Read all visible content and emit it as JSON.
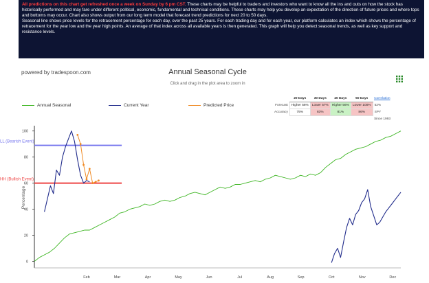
{
  "banner": {
    "highlight": "All predictions on this chart get refreshed once a week on Sunday by 6 pm CST.",
    "text1": "These charts may be helpful to traders and investors who want to know all the ins and outs on how the stock has historically performed and may fare under different political, economic, fundamental and technical conditions. These charts may help you develop an expectation of the direction of future prices and where tops and bottoms may occur. Chart also shows output from our long term model that forecast trend predictions for next 20 to 50 days.",
    "text2": "Seasonal line shows price levels for the retracement percentage for each day, over the past 25 years. For each trading day and for each year, our platform calculates an index which shows the percentage of retracement for the year low and the year high points. An average of that index across all available years is then generated. This graph will help you detect seasonal trends, as well as key support and resistance levels."
  },
  "powered_by": "powered by tradespoon.com",
  "subtitle": "Click and drag in the plot area to zoom in",
  "colors": {
    "seasonal": "#3cb521",
    "current": "#1f2a8a",
    "predicted": "#f08a24",
    "bearish": "#7777ee",
    "bullish": "#ee4444",
    "banner_bg": "#0d1433"
  },
  "forecast": {
    "headers": [
      "20 Days",
      "30 Days",
      "40 Days",
      "50 Days"
    ],
    "rows": [
      {
        "label": "Forecast",
        "cells": [
          {
            "t": "Higher 56%",
            "dir": "none"
          },
          {
            "t": "Lower 57%",
            "dir": "down"
          },
          {
            "t": "Higher 56%",
            "dir": "up"
          },
          {
            "t": "Lower 100%",
            "dir": "down"
          }
        ]
      },
      {
        "label": "Accuracy",
        "cells": [
          {
            "t": "75%",
            "dir": "none"
          },
          {
            "t": "83%",
            "dir": "down"
          },
          {
            "t": "81%",
            "dir": "up"
          },
          {
            "t": "86%",
            "dir": "down"
          }
        ]
      }
    ],
    "extra": [
      "Correlation",
      "52%",
      "SPY",
      "Since 1993"
    ]
  },
  "chart_data": {
    "type": "line",
    "title": "Annual Seasonal Cycle",
    "xlabel": "",
    "ylabel": "Percentage",
    "months": [
      "Feb",
      "Mar",
      "Apr",
      "May",
      "Jun",
      "Jul",
      "Aug",
      "Sep",
      "Oct",
      "Nov",
      "Dec"
    ],
    "yticks": [
      0,
      20,
      40,
      60,
      80,
      100
    ],
    "ylim": [
      -5,
      103
    ],
    "xlim": [
      0,
      365
    ],
    "grid": false,
    "legend_position": "top",
    "series": [
      {
        "name": "Annual Seasonal",
        "x": [
          0,
          5,
          10,
          15,
          20,
          25,
          30,
          35,
          40,
          45,
          50,
          55,
          60,
          65,
          70,
          75,
          80,
          85,
          90,
          95,
          100,
          105,
          110,
          115,
          120,
          125,
          130,
          135,
          140,
          145,
          150,
          155,
          160,
          165,
          170,
          175,
          180,
          185,
          190,
          195,
          200,
          205,
          210,
          215,
          220,
          225,
          230,
          235,
          240,
          245,
          250,
          255,
          260,
          265,
          270,
          275,
          280,
          285,
          290,
          295,
          300,
          305,
          310,
          315,
          320,
          325,
          330,
          335,
          340,
          345,
          350,
          355,
          360,
          365
        ],
        "y": [
          0,
          3,
          5,
          7,
          10,
          14,
          18,
          21,
          22,
          23,
          24,
          24,
          26,
          28,
          30,
          32,
          34,
          37,
          38,
          40,
          41,
          42,
          44,
          43,
          44,
          46,
          47,
          46,
          47,
          49,
          50,
          52,
          53,
          52,
          51,
          53,
          55,
          57,
          56,
          57,
          59,
          59,
          60,
          61,
          62,
          61,
          63,
          64,
          66,
          65,
          64,
          63,
          64,
          66,
          65,
          67,
          66,
          68,
          72,
          75,
          78,
          79,
          82,
          84,
          86,
          87,
          88,
          90,
          92,
          93,
          95,
          96,
          98,
          100
        ]
      },
      {
        "name": "Current Year",
        "segments": [
          {
            "x": [
              10,
              13,
              16,
              19,
              22,
              25,
              28,
              31,
              34,
              37,
              40,
              43,
              46,
              49,
              52,
              55
            ],
            "y": [
              38,
              48,
              58,
              52,
              70,
              66,
              80,
              88,
              94,
              100,
              92,
              78,
              66,
              60,
              62,
              61
            ]
          },
          {
            "x": [
              296,
              299,
              302,
              305,
              308,
              311,
              314,
              317,
              320,
              323,
              326,
              329,
              332,
              335,
              338,
              341,
              344,
              347,
              350,
              353,
              356,
              359,
              362,
              365
            ],
            "y": [
              -1,
              6,
              10,
              3,
              15,
              26,
              33,
              28,
              36,
              39,
              45,
              48,
              55,
              42,
              35,
              28,
              30,
              34,
              38,
              41,
              44,
              47,
              50,
              53
            ]
          }
        ]
      },
      {
        "name": "Predicted Price",
        "x": [
          43,
          46,
          49,
          52,
          55,
          58,
          61,
          64
        ],
        "y": [
          97,
          90,
          74,
          63,
          71,
          60,
          61,
          62
        ]
      }
    ],
    "annotations": [
      {
        "label": "LL (Bearish Event)",
        "y": 89,
        "x_end": 87
      },
      {
        "label": "HH (Bullish Event)",
        "y": 60,
        "x_end": 87
      }
    ]
  }
}
